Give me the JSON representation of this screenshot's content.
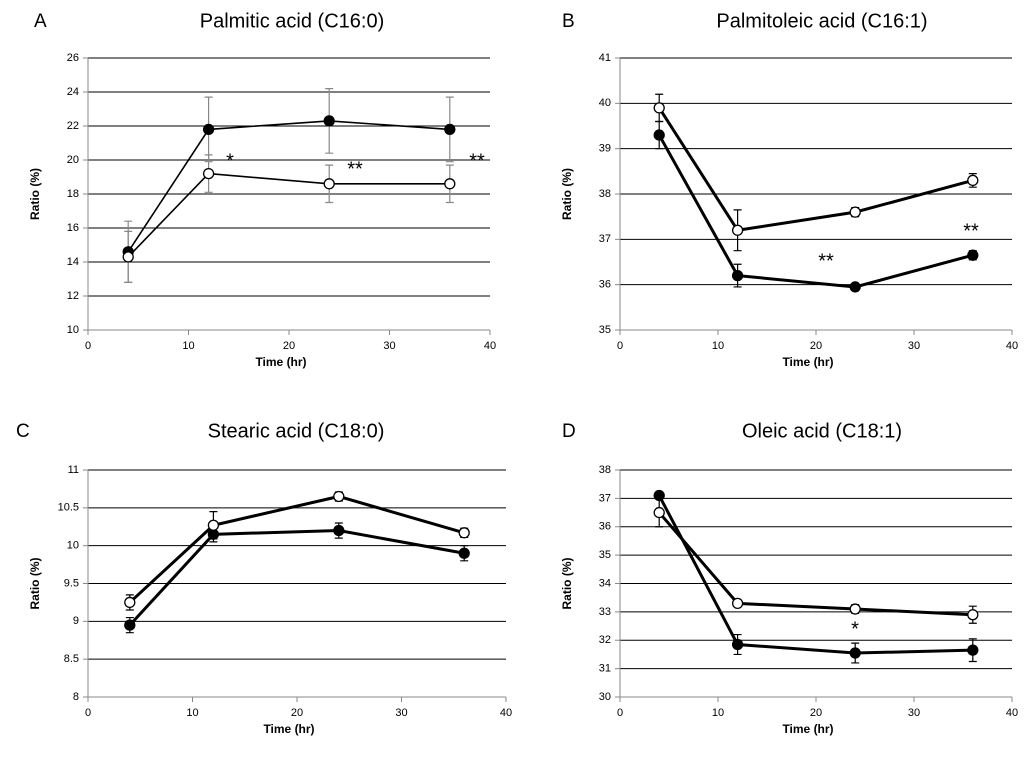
{
  "chart_data": [
    {
      "type": "line",
      "label": "A",
      "title": "Palmitic acid (C16:0)",
      "xlabel": "Time (hr)",
      "ylabel": "Ratio (%)",
      "x": [
        4,
        12,
        24,
        36
      ],
      "xlim": [
        0,
        40
      ],
      "xticks": [
        0,
        10,
        20,
        30,
        40
      ],
      "ylim": [
        10,
        26
      ],
      "yticks": [
        10,
        12,
        14,
        16,
        18,
        20,
        22,
        24,
        26
      ],
      "grid": true,
      "series": [
        {
          "color": "#000000",
          "values": [
            14.6,
            21.8,
            22.3,
            21.8
          ],
          "errors": [
            1.8,
            1.9,
            1.9,
            1.9
          ]
        },
        {
          "color": "#ffffff",
          "values": [
            14.3,
            19.2,
            18.6,
            18.6
          ],
          "errors": [
            1.5,
            1.1,
            1.1,
            1.1
          ]
        }
      ],
      "annotations": [
        "*",
        "**",
        "**"
      ]
    },
    {
      "type": "line",
      "label": "B",
      "title": "Palmitoleic acid (C16:1)",
      "xlabel": "Time (hr)",
      "ylabel": "Ratio (%)",
      "x": [
        4,
        12,
        24,
        36
      ],
      "xlim": [
        0,
        40
      ],
      "xticks": [
        0,
        10,
        20,
        30,
        40
      ],
      "ylim": [
        35,
        41
      ],
      "yticks": [
        35,
        36,
        37,
        38,
        39,
        40,
        41
      ],
      "grid": true,
      "series": [
        {
          "color": "#000000",
          "values": [
            39.3,
            36.2,
            35.95,
            36.65
          ],
          "errors": [
            0.3,
            0.25,
            0.06,
            0.1
          ]
        },
        {
          "color": "#ffffff",
          "values": [
            39.9,
            37.2,
            37.6,
            38.3
          ],
          "errors": [
            0.3,
            0.45,
            0.1,
            0.15
          ]
        }
      ],
      "annotations": [
        "**",
        "**"
      ]
    },
    {
      "type": "line",
      "label": "C",
      "title": "Stearic acid (C18:0)",
      "xlabel": "Time (hr)",
      "ylabel": "Ratio (%)",
      "x": [
        4,
        12,
        24,
        36
      ],
      "xlim": [
        0,
        40
      ],
      "xticks": [
        0,
        10,
        20,
        30,
        40
      ],
      "ylim": [
        8,
        11
      ],
      "yticks": [
        8,
        8.5,
        9,
        9.5,
        10,
        10.5,
        11
      ],
      "grid": true,
      "series": [
        {
          "color": "#000000",
          "values": [
            8.95,
            10.15,
            10.2,
            9.9
          ],
          "errors": [
            0.1,
            0.1,
            0.1,
            0.1
          ]
        },
        {
          "color": "#ffffff",
          "values": [
            9.25,
            10.27,
            10.65,
            10.17
          ],
          "errors": [
            0.1,
            0.18,
            0.06,
            0.06
          ]
        }
      ],
      "annotations": []
    },
    {
      "type": "line",
      "label": "D",
      "title": "Oleic acid (C18:1)",
      "xlabel": "Time (hr)",
      "ylabel": "Ratio (%)",
      "x": [
        4,
        12,
        24,
        36
      ],
      "xlim": [
        0,
        40
      ],
      "xticks": [
        0,
        10,
        20,
        30,
        40
      ],
      "ylim": [
        30,
        38
      ],
      "yticks": [
        30,
        31,
        32,
        33,
        34,
        35,
        36,
        37,
        38
      ],
      "grid": true,
      "series": [
        {
          "color": "#000000",
          "values": [
            37.1,
            31.85,
            31.55,
            31.65
          ],
          "errors": [
            0.05,
            0.35,
            0.35,
            0.4
          ]
        },
        {
          "color": "#ffffff",
          "values": [
            36.5,
            33.3,
            33.1,
            32.9
          ],
          "errors": [
            0.5,
            0.1,
            0.15,
            0.3
          ]
        }
      ],
      "annotations": [
        "*"
      ]
    }
  ]
}
